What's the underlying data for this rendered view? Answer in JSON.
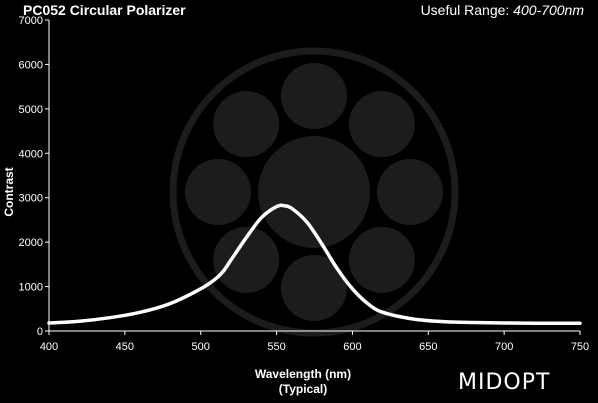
{
  "header": {
    "title": "PC052 Circular Polarizer",
    "range_label": "Useful Range: ",
    "range_value": "400-700nm"
  },
  "brand": {
    "logo_text": "MIDOPT"
  },
  "colors": {
    "background": "#000000",
    "line": "#ffffff",
    "watermark": "#1c1c1c"
  },
  "chart_data": {
    "type": "line",
    "title": "PC052 Circular Polarizer",
    "xlabel": "Wavelength (nm)",
    "xlabel_sub": "(Typical)",
    "ylabel": "Contrast",
    "xlim": [
      400,
      750
    ],
    "ylim": [
      0,
      7000
    ],
    "xticks": [
      400,
      450,
      500,
      550,
      600,
      650,
      700,
      750
    ],
    "yticks": [
      0,
      1000,
      2000,
      3000,
      4000,
      5000,
      6000,
      7000
    ],
    "grid": false,
    "series": [
      {
        "x": [
          400,
          420,
          440,
          460,
          480,
          500,
          510,
          515,
          520,
          530,
          540,
          550,
          555,
          560,
          570,
          580,
          590,
          600,
          610,
          620,
          640,
          660,
          680,
          700,
          720,
          740,
          750
        ],
        "y": [
          180,
          220,
          300,
          420,
          620,
          950,
          1180,
          1350,
          1600,
          2100,
          2550,
          2800,
          2820,
          2760,
          2450,
          1950,
          1400,
          950,
          620,
          420,
          270,
          210,
          190,
          180,
          175,
          175,
          175
        ]
      }
    ]
  }
}
